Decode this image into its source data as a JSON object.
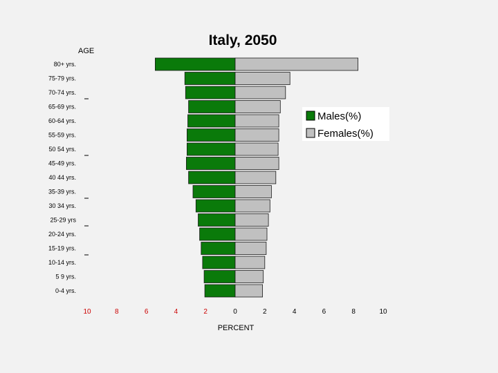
{
  "chart_data": {
    "type": "bar",
    "title": "Italy, 2050",
    "ylabel": "AGE",
    "xlabel": "PERCENT",
    "orientation": "horizontal-pyramid",
    "categories": [
      "80+ yrs.",
      "75-79 yrs.",
      "70-74 yrs.",
      "65-69 yrs.",
      "60-64 yrs.",
      "55-59 yrs.",
      "50 54 yrs.",
      "45-49 yrs.",
      "40 44 yrs.",
      "35-39 yrs.",
      "30 34 yrs.",
      "25-29 yrs",
      "20-24 yrs.",
      "15-19 yrs.",
      "10-14 yrs.",
      "5 9 yrs.",
      "0-4 yrs."
    ],
    "series": [
      {
        "name": "Males(%)",
        "color": "#0a7a0a",
        "values": [
          5.4,
          3.4,
          3.35,
          3.15,
          3.2,
          3.25,
          3.25,
          3.3,
          3.15,
          2.85,
          2.65,
          2.5,
          2.4,
          2.3,
          2.2,
          2.1,
          2.05
        ]
      },
      {
        "name": "Females(%)",
        "color": "#c0c0c0",
        "values": [
          8.3,
          3.7,
          3.4,
          3.05,
          2.95,
          2.95,
          2.9,
          2.95,
          2.75,
          2.45,
          2.35,
          2.25,
          2.15,
          2.1,
          2.0,
          1.9,
          1.85
        ]
      }
    ],
    "xticks": [
      "10",
      "8",
      "6",
      "4",
      "2",
      "0",
      "2",
      "4",
      "6",
      "8",
      "10"
    ],
    "xlim": [
      -10,
      10
    ],
    "tick_colors": {
      "negative": "#cc0000",
      "zero_and_positive": "#000000"
    },
    "grid": false,
    "legend_position": "right"
  }
}
